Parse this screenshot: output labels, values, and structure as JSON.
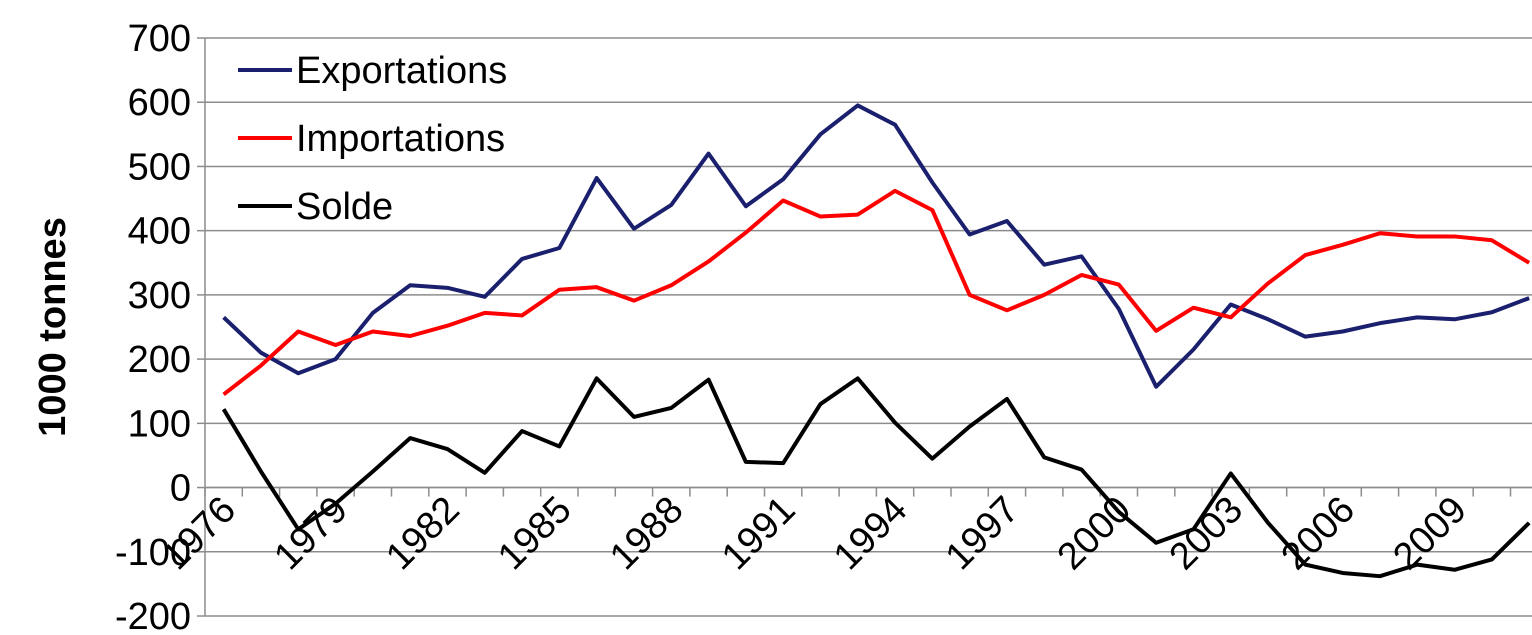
{
  "chart_data": {
    "type": "line",
    "y_label": "1000 tonnes",
    "categories": [
      "1976",
      null,
      null,
      "1979",
      null,
      null,
      "1982",
      null,
      null,
      "1985",
      null,
      null,
      "1988",
      null,
      null,
      "1991",
      null,
      null,
      "1994",
      null,
      null,
      "1997",
      null,
      null,
      "2000",
      null,
      null,
      "2003",
      null,
      null,
      "2006",
      null,
      null,
      "2009",
      null,
      null
    ],
    "series": [
      {
        "name": "Exportations",
        "color": "#1a1f6e",
        "values": [
          265,
          210,
          178,
          200,
          272,
          315,
          311,
          297,
          356,
          373,
          482,
          403,
          440,
          520,
          438,
          480,
          550,
          595,
          565,
          475,
          394,
          415,
          347,
          360,
          278,
          157,
          215,
          285,
          262,
          235,
          243,
          256,
          265,
          262,
          273,
          295
        ]
      },
      {
        "name": "Importations",
        "color": "#ff0000",
        "values": [
          145,
          190,
          243,
          222,
          243,
          236,
          252,
          272,
          268,
          308,
          312,
          291,
          315,
          352,
          397,
          447,
          422,
          425,
          462,
          432,
          300,
          276,
          300,
          331,
          316,
          244,
          280,
          265,
          318,
          362,
          378,
          396,
          391,
          391,
          385,
          350
        ]
      },
      {
        "name": "Solde",
        "color": "#000000",
        "values": [
          122,
          25,
          -65,
          -25,
          25,
          77,
          60,
          23,
          88,
          64,
          170,
          110,
          124,
          168,
          40,
          38,
          130,
          170,
          101,
          45,
          95,
          138,
          47,
          28,
          -38,
          -86,
          -65,
          22,
          -55,
          -120,
          -133,
          -138,
          -120,
          -128,
          -112,
          -55
        ]
      }
    ],
    "ylim": [
      -200,
      700
    ],
    "yticks": [
      -200,
      -100,
      0,
      100,
      200,
      300,
      400,
      500,
      600,
      700
    ],
    "grid": true,
    "legend": "top-left"
  }
}
